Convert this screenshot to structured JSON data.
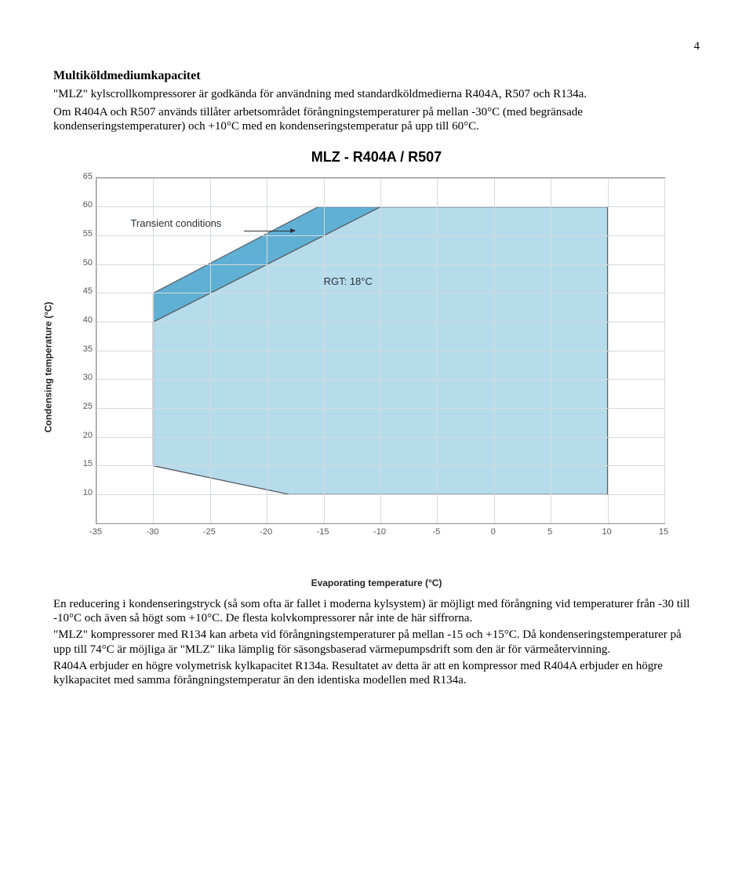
{
  "page_number": "4",
  "section_title": "Multiköldmediumkapacitet",
  "intro_para1": "\"MLZ\" kylscrollkompressorer är godkända för användning med standardköldmedierna R404A, R507 och R134a.",
  "intro_para2": "Om R404A och R507 används tillåter arbetsområdet förångningstemperaturer på mellan -30°C (med begränsade kondenseringstemperaturer) och +10°C med en kondenseringstemperatur på upp till 60°C.",
  "chart": {
    "title": "MLZ - R404A / R507",
    "xlabel": "Evaporating temperature (°C)",
    "ylabel": "Condensing temperature (°C)",
    "xlim": [
      -35,
      15
    ],
    "ylim": [
      5,
      65
    ],
    "xticks": [
      -35,
      -30,
      -25,
      -20,
      -15,
      -10,
      -5,
      0,
      5,
      10,
      15
    ],
    "yticks": [
      10,
      15,
      20,
      25,
      30,
      35,
      40,
      45,
      50,
      55,
      60,
      65
    ],
    "grid_color": "#d6d9dc",
    "border_color": "#8a8f95",
    "main_fill": "#b6dcec",
    "main_stroke": "#5a6068",
    "transient_fill": "#5fb0d4",
    "main_polygon": [
      [
        -30,
        40
      ],
      [
        -10,
        60
      ],
      [
        10,
        60
      ],
      [
        10,
        10
      ],
      [
        -18,
        10
      ],
      [
        -30,
        15
      ],
      [
        -30,
        40
      ]
    ],
    "transient_polygon": [
      [
        -30,
        40
      ],
      [
        -10,
        60
      ],
      [
        -15.5,
        60
      ],
      [
        -30,
        45
      ],
      [
        -30,
        40
      ]
    ],
    "rgt_text": "RGT: 18°C",
    "rgt_pos_data": [
      -15,
      47
    ],
    "trans_text": "Transient conditions",
    "trans_pos_data": [
      -32,
      57
    ],
    "trans_arrow_from": [
      -22,
      55.8
    ],
    "trans_arrow_to": [
      -17.5,
      55.8
    ]
  },
  "after_para1": "En reducering i kondenseringstryck (så som ofta är fallet i moderna kylsystem) är möjligt med förångning vid temperaturer från -30 till -10°C och även så högt som +10°C. De flesta kolvkompressorer når inte de här siffrorna.",
  "after_para2": "\"MLZ\" kompressorer med R134 kan arbeta vid förångningstemperaturer på mellan -15 och +15°C. Då kondenseringstemperaturer på upp till 74°C är möjliga är \"MLZ\" lika lämplig för säsongsbaserad värmepumpsdrift som den är för värmeåtervinning.",
  "after_para3": "R404A erbjuder en högre volymetrisk kylkapacitet R134a. Resultatet av detta är att en kompressor med R404A erbjuder en högre kylkapacitet med samma förångningstemperatur än den identiska modellen med R134a."
}
